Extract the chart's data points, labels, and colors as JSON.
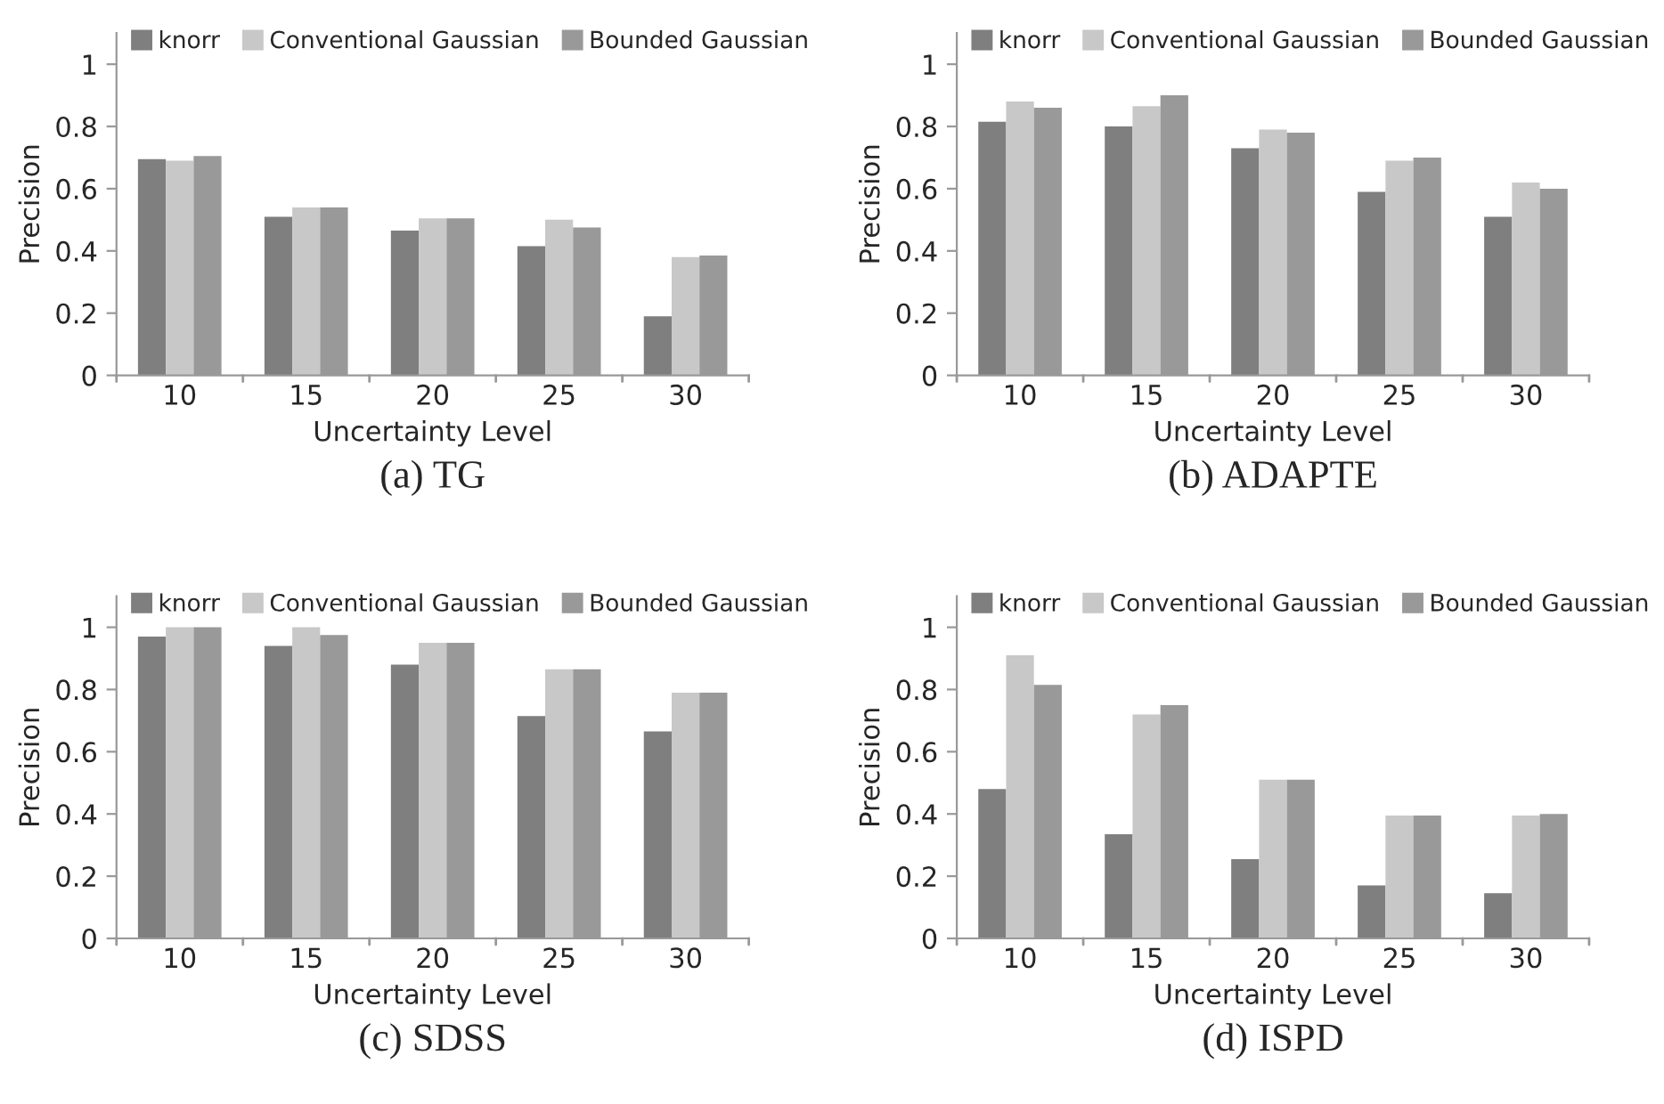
{
  "chart_data": [
    {
      "type": "bar",
      "title": "(a) TG",
      "xlabel": "Uncertainty Level",
      "ylabel": "Precision",
      "categories": [
        "10",
        "15",
        "20",
        "25",
        "30"
      ],
      "ylim": [
        0,
        1.1
      ],
      "yticks": [
        0,
        0.2,
        0.4,
        0.6,
        0.8,
        1
      ],
      "grid": false,
      "legend": "top",
      "series": [
        {
          "name": "knorr",
          "color": "#7f7f7f",
          "values": [
            0.695,
            0.51,
            0.465,
            0.415,
            0.19
          ]
        },
        {
          "name": "Conventional Gaussian",
          "color": "#c8c8c8",
          "values": [
            0.69,
            0.54,
            0.505,
            0.5,
            0.38
          ]
        },
        {
          "name": "Bounded Gaussian",
          "color": "#999999",
          "values": [
            0.705,
            0.54,
            0.505,
            0.475,
            0.385
          ]
        }
      ]
    },
    {
      "type": "bar",
      "title": "(b) ADAPTE",
      "xlabel": "Uncertainty Level",
      "ylabel": "Precision",
      "categories": [
        "10",
        "15",
        "20",
        "25",
        "30"
      ],
      "ylim": [
        0,
        1.1
      ],
      "yticks": [
        0,
        0.2,
        0.4,
        0.6,
        0.8,
        1
      ],
      "grid": false,
      "legend": "top",
      "series": [
        {
          "name": "knorr",
          "color": "#7f7f7f",
          "values": [
            0.815,
            0.8,
            0.73,
            0.59,
            0.51
          ]
        },
        {
          "name": "Conventional Gaussian",
          "color": "#c8c8c8",
          "values": [
            0.88,
            0.865,
            0.79,
            0.69,
            0.62
          ]
        },
        {
          "name": "Bounded Gaussian",
          "color": "#999999",
          "values": [
            0.86,
            0.9,
            0.78,
            0.7,
            0.6
          ]
        }
      ]
    },
    {
      "type": "bar",
      "title": "(c) SDSS",
      "xlabel": "Uncertainty Level",
      "ylabel": "Precision",
      "categories": [
        "10",
        "15",
        "20",
        "25",
        "30"
      ],
      "ylim": [
        0,
        1.1
      ],
      "yticks": [
        0,
        0.2,
        0.4,
        0.6,
        0.8,
        1
      ],
      "grid": false,
      "legend": "top",
      "series": [
        {
          "name": "knorr",
          "color": "#7f7f7f",
          "values": [
            0.97,
            0.94,
            0.88,
            0.715,
            0.665
          ]
        },
        {
          "name": "Conventional Gaussian",
          "color": "#c8c8c8",
          "values": [
            1.0,
            1.0,
            0.95,
            0.865,
            0.79
          ]
        },
        {
          "name": "Bounded Gaussian",
          "color": "#999999",
          "values": [
            1.0,
            0.975,
            0.95,
            0.865,
            0.79
          ]
        }
      ]
    },
    {
      "type": "bar",
      "title": "(d) ISPD",
      "xlabel": "Uncertainty Level",
      "ylabel": "Precision",
      "categories": [
        "10",
        "15",
        "20",
        "25",
        "30"
      ],
      "ylim": [
        0,
        1.1
      ],
      "yticks": [
        0,
        0.2,
        0.4,
        0.6,
        0.8,
        1
      ],
      "grid": false,
      "legend": "top",
      "series": [
        {
          "name": "knorr",
          "color": "#7f7f7f",
          "values": [
            0.48,
            0.335,
            0.255,
            0.17,
            0.145
          ]
        },
        {
          "name": "Conventional Gaussian",
          "color": "#c8c8c8",
          "values": [
            0.91,
            0.72,
            0.51,
            0.395,
            0.395
          ]
        },
        {
          "name": "Bounded Gaussian",
          "color": "#999999",
          "values": [
            0.815,
            0.75,
            0.51,
            0.395,
            0.4
          ]
        }
      ]
    }
  ]
}
